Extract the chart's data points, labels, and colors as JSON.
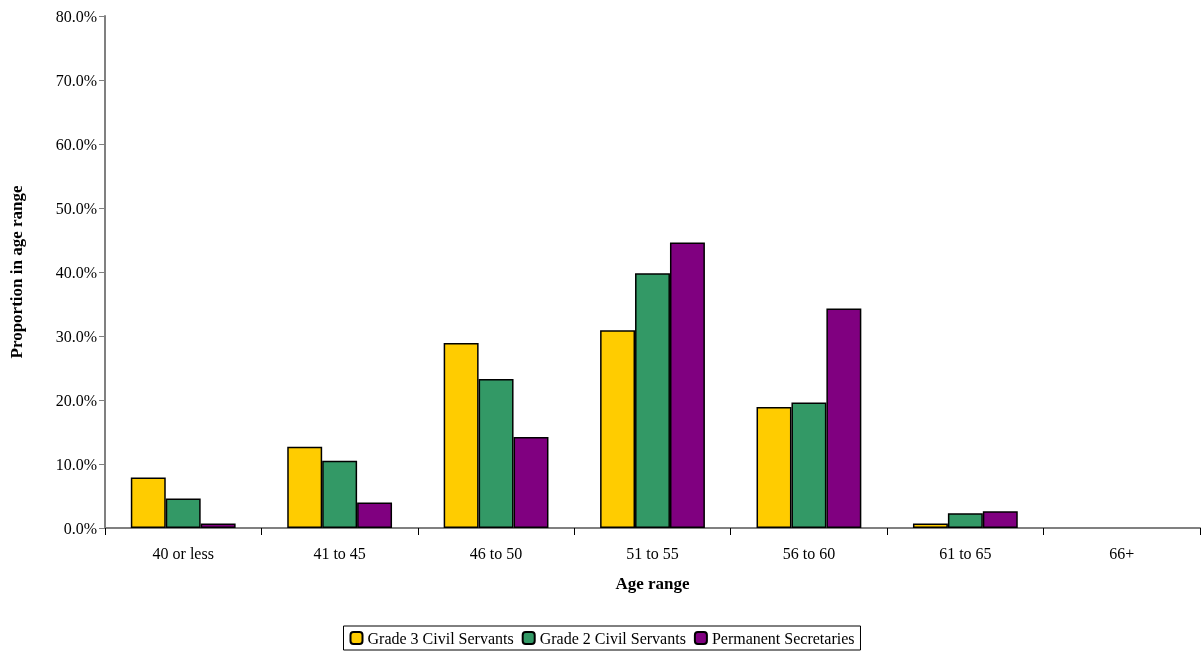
{
  "chart_data": {
    "type": "bar",
    "xlabel": "Age range",
    "ylabel": "Proportion in age range",
    "categories": [
      "40 or less",
      "41 to 45",
      "46 to 50",
      "51 to 55",
      "56 to 60",
      "61 to 65",
      "66+"
    ],
    "series": [
      {
        "name": "Grade 3 Civil Servants",
        "color": "#ffcc00",
        "values": [
          7.9,
          12.7,
          28.9,
          30.9,
          18.9,
          0.7,
          0
        ]
      },
      {
        "name": "Grade 2 Civil Servants",
        "color": "#339966",
        "values": [
          4.6,
          10.5,
          23.3,
          39.8,
          19.6,
          2.3,
          0
        ]
      },
      {
        "name": "Permanent Secretaries",
        "color": "#800080",
        "values": [
          0.7,
          4.0,
          14.2,
          44.6,
          34.3,
          2.6,
          0
        ]
      }
    ],
    "ylim": [
      0,
      80
    ],
    "yticks": [
      {
        "value": 0,
        "label": "0.0%"
      },
      {
        "value": 10,
        "label": "10.0%"
      },
      {
        "value": 20,
        "label": "20.0%"
      },
      {
        "value": 30,
        "label": "30.0%"
      },
      {
        "value": 40,
        "label": "40.0%"
      },
      {
        "value": 50,
        "label": "50.0%"
      },
      {
        "value": 60,
        "label": "60.0%"
      },
      {
        "value": 70,
        "label": "70.0%"
      },
      {
        "value": 80,
        "label": "80.0%"
      }
    ],
    "grid": false,
    "legend": "bottom"
  }
}
